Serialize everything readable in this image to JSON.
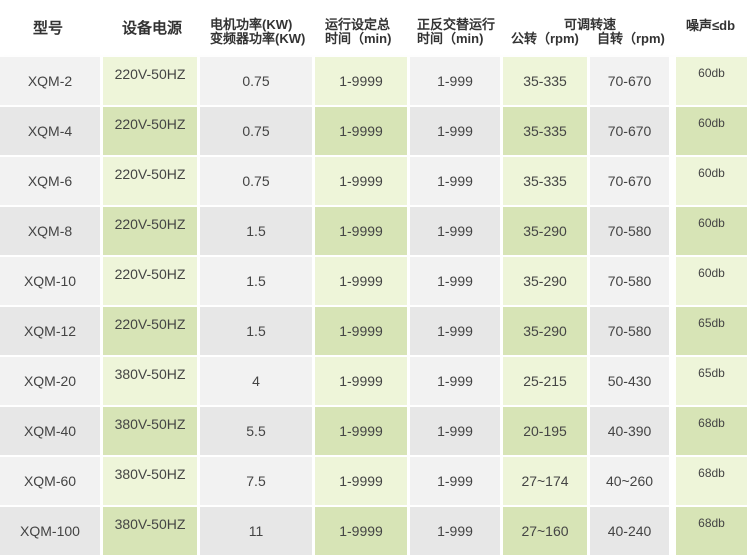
{
  "headers": {
    "model": "型号",
    "power_supply": "设备电源",
    "motor_power_1": "电机功率(KW)",
    "motor_power_2": "变频器功率(KW)",
    "run_time_1": "运行设定总",
    "run_time_2": "时间（min)",
    "alt_time_1": "正反交替运行",
    "alt_time_2": "时间（min)",
    "speed": "可调转速",
    "revolution": "公转（rpm)",
    "rotation": "自转（rpm)",
    "noise": "噪声≤db"
  },
  "rows": [
    [
      "XQM-2",
      "220V-50HZ",
      "0.75",
      "1-9999",
      "1-999",
      "35-335",
      "70-670",
      "60db"
    ],
    [
      "XQM-4",
      "220V-50HZ",
      "0.75",
      "1-9999",
      "1-999",
      "35-335",
      "70-670",
      "60db"
    ],
    [
      "XQM-6",
      "220V-50HZ",
      "0.75",
      "1-9999",
      "1-999",
      "35-335",
      "70-670",
      "60db"
    ],
    [
      "XQM-8",
      "220V-50HZ",
      "1.5",
      "1-9999",
      "1-999",
      "35-290",
      "70-580",
      "60db"
    ],
    [
      "XQM-10",
      "220V-50HZ",
      "1.5",
      "1-9999",
      "1-999",
      "35-290",
      "70-580",
      "60db"
    ],
    [
      "XQM-12",
      "220V-50HZ",
      "1.5",
      "1-9999",
      "1-999",
      "35-290",
      "70-580",
      "65db"
    ],
    [
      "XQM-20",
      "380V-50HZ",
      "4",
      "1-9999",
      "1-999",
      "25-215",
      "50-430",
      "65db"
    ],
    [
      "XQM-40",
      "380V-50HZ",
      "5.5",
      "1-9999",
      "1-999",
      "20-195",
      "40-390",
      "68db"
    ],
    [
      "XQM-60",
      "380V-50HZ",
      "7.5",
      "1-9999",
      "1-999",
      "27~174",
      "40~260",
      "68db"
    ],
    [
      "XQM-100",
      "380V-50HZ",
      "11",
      "1-9999",
      "1-999",
      "27~160",
      "40-240",
      "68db"
    ]
  ],
  "colors": {
    "green_light": "#eef5d9",
    "green_dark": "#d7e4b6",
    "grey_light": "#f2f2f2",
    "grey_dark": "#e7e7e7"
  }
}
